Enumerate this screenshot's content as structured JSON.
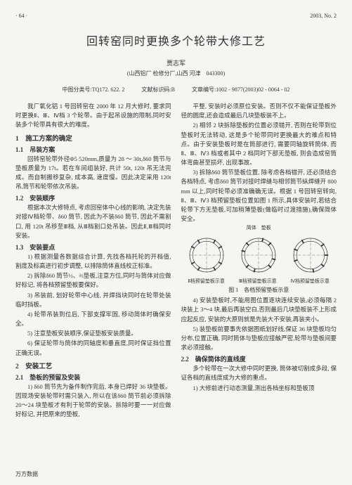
{
  "header": {
    "page": "· 64 ·",
    "issue": "2003, No. 2"
  },
  "title": "回转窑同时更换多个轮带大修工艺",
  "author": "贾志军",
  "affil": "(山西铝厂 检修分厂,山西 河津　043300)",
  "class": {
    "clc": "中图分类号:TQ172. 622. 2",
    "doc": "文献标识码:B",
    "artno": "文章编号:1002 - 9877(2003)02 - 0064 - 02"
  },
  "left": {
    "intro": "我厂氧化铝 1 号回转窑在 2000 年 12 月大修时, 要求同时更换Ⅱ、Ⅲ、Ⅳ档 3 个轮带。由于起吊设施的限制,同时安装多个轮带具有很大的难度。",
    "s1": "1　施工方案的确定",
    "s11": "1.1　吊装方案",
    "p11": "回转窑轮带外径Φ5 520mm,质量为 28 ～ 30t,δ60 筒节与垫板质量为 17t。若在车间组装好, 共计 50t, 120t 吊无法完成。而自制搬移复杂, 成本高, 速度慢。因此决定采用 120t 吊,筒节和轮带依次吊装。",
    "s12": "1.2　安装顺序",
    "p12": "根据本次大修特点, 考虑回窑体中心线的影响, 决定先装对接Ⅳ档轮带、δ60 筒节, 因此为不装δ60 筒节, 因此不需割口, 用 120t 吊移至Ⅲ档, 从Ⅲ档割口处吊装。因此Ⅱ,Ⅲ档同时安装。",
    "s13": "1.3　安装要点",
    "p13a": "1) 根据测量各数据综合计算, 先找各档托轮的开档值, 割度及标高进行初步调整, 以排除筒体直线校正标准。",
    "p13b": "2) 拆除δ60 筒节½、⅔垫板,注意方位,同时与筒体对应做好标记, 将各档预留垫板要保好。",
    "p13c": "3) 吊装前, 划好轮带中心线, 并焊挡块同时在轮带处装临时挡板。",
    "p13d": "4) 轮带吊装到位后, 下部支撑牢固, 移动简体时确保安全。",
    "p13e": "5) 注意垫板安装顺序,保证垫板安装质量。",
    "p13f": "6) 保证轮带与筒体的同轴度和垂直度,同时保证挡位置正确无误。",
    "s2": "2　安装工艺",
    "s21": "2.1　垫板的预留及安装",
    "p21a": "1) δ60 筒节先为备件制作完后, 本身已焊好 36 块垫板。因现场安装轮带时需只装入, 所以在该δ60 筒节前必须拆除 20～24 块垫板才有利于轮带的安装。拆除时要一一对应做好标记, 并把原来的垫板,",
    "footer": "万方数据"
  },
  "right": {
    "p_r1": "平整, 安装时必须原位安装。否则不仅不能保证垫板外径的圆度,还会造成最后几块垫板装不上。",
    "p_r2": "2) 相邻 2 块拆除垫板的位置必须错开, 否则在轮带到位垫板时无法转动, 这是多个轮带同时更换最大的难点和特点。由于安装垫板时是在筒部进行, 需要同轴旋转筒体, 而Ⅱ、Ⅲ、Ⅳ3 档或者其中 2 档同时下部无垫板, 则会造成窑筒体弯曲甚至损坏, 出现事故。",
    "p_r3": "3) 拆除δ60 筒节垫板位置, 除考虑各档错开, 还必须结合各档特点, 考虑δ60 筒节对接时焊缝与相邻筒节纵焊缝开 800 mm 以上,同时轮带必须准确确无误。根据 1 号回转窑转向, Ⅱ、Ⅲ、Ⅳ3 档预留垫板位置如图 1 所示,具体安装时,若结合轮带下方无垫板,可加稍薄垫板(做临时过渡措施),确保简体安全。",
    "toprow": {
      "a": "简体　垫板",
      "b": "",
      "c": ""
    },
    "figlabels": {
      "a": "Ⅱ档预留垫板示意",
      "b": "Ⅲ档预留垫板示意",
      "c": "Ⅳ档预留垫板示意"
    },
    "figcap": "图 1　各档预留垫板示意",
    "p_r4": "4) 安装垫板时,不能用图位置逐块连续安装,必须每隔 2 块装上 3～4 块,最后再装空白,否则最后几块垫板装不上形成应起反应, 安装的大原则就是先装大不安装,再装夹小。",
    "p_r5": "5) 装垫板前要事先依据图纸划好线,保证 36 块垫板均匀分布,位置正确, 同时筒体与垫板应接触严密,轮带与垫板间要求必须接触。",
    "s22": "2.2　确保筒体的直线度",
    "p_r6": "多个轮带在一次大修中同时更换, 筒体被切割成多段, 保证各档的直线度成为大修的重点。",
    "p_r7": "1) 大修前进行动态测量,测出各档坐标和垫板顶"
  },
  "fig": {
    "stroke": "#333333",
    "bg": "#f5f5f3",
    "circles": [
      {
        "ticks": [
          30,
          60,
          120,
          150,
          210,
          240,
          300,
          330
        ],
        "arrows": true
      },
      {
        "ticks": [
          15,
          45,
          105,
          135,
          195,
          225,
          285,
          315
        ],
        "arrows": true
      },
      {
        "ticks": [
          0,
          40,
          80,
          160,
          200,
          240,
          320
        ],
        "arrows": true
      }
    ]
  }
}
